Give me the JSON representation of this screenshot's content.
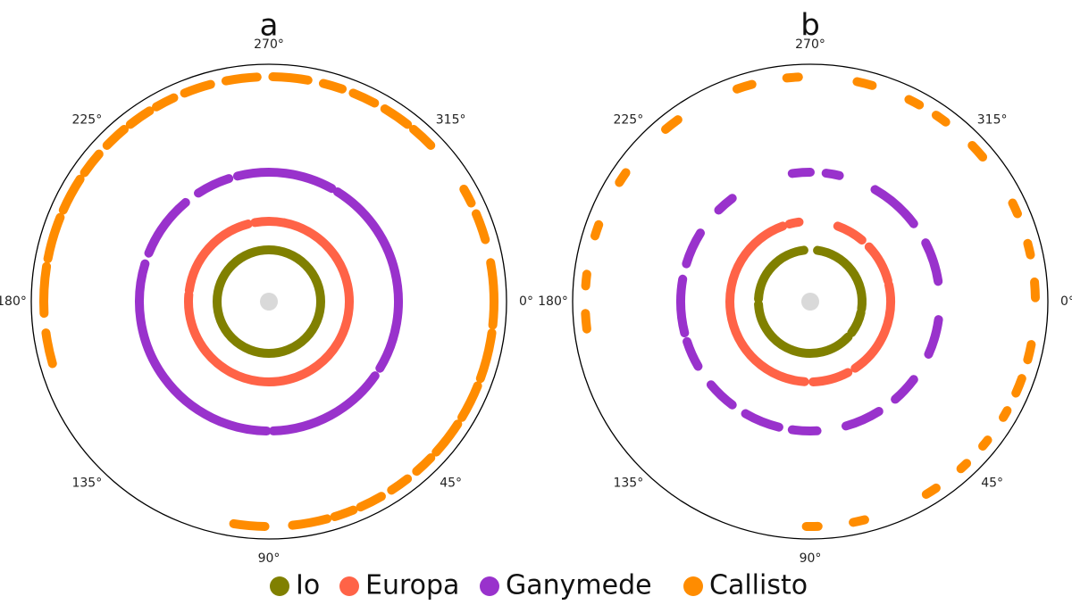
{
  "chart_data": [
    {
      "type": "polar",
      "title": "a",
      "angle_ticks": [
        "0°",
        "45°",
        "90°",
        "135°",
        "180°",
        "225°",
        "270°",
        "315°"
      ],
      "angle_tick_values": [
        0,
        45,
        90,
        135,
        180,
        225,
        270,
        315
      ],
      "series": [
        {
          "name": "Io",
          "color": "#808000",
          "radius": 1,
          "arcs": [
            [
              0,
              360
            ]
          ]
        },
        {
          "name": "Europa",
          "color": "#ff6347",
          "radius": 2,
          "arcs": [
            [
              -79,
              185
            ],
            [
              188,
              255
            ],
            [
              260,
              281
            ]
          ]
        },
        {
          "name": "Ganymede",
          "color": "#9932cc",
          "radius": 3,
          "arcs": [
            [
              -58,
              31
            ],
            [
              35,
              88
            ],
            [
              91,
              197
            ],
            [
              202,
              230
            ],
            [
              237,
              252
            ],
            [
              256,
              299
            ]
          ]
        },
        {
          "name": "Callisto",
          "color": "#ff8c00",
          "radius": 5,
          "arcs": [
            [
              -30,
              -26
            ],
            [
              -23,
              -16
            ],
            [
              -10,
              6
            ],
            [
              8,
              20
            ],
            [
              22,
              31
            ],
            [
              33,
              42
            ],
            [
              44,
              49
            ],
            [
              52,
              57
            ],
            [
              60,
              66
            ],
            [
              68,
              73
            ],
            [
              75,
              84
            ],
            [
              91,
              99
            ],
            [
              164,
              172
            ],
            [
              177,
              189
            ],
            [
              191,
              202
            ],
            [
              204,
              213
            ],
            [
              215,
              221
            ],
            [
              224,
              230
            ],
            [
              232,
              238
            ],
            [
              240,
              245
            ],
            [
              248,
              255
            ],
            [
              259,
              267
            ],
            [
              271,
              280
            ],
            [
              284,
              289
            ],
            [
              292,
              298
            ],
            [
              301,
              308
            ],
            [
              310,
              316
            ]
          ]
        }
      ]
    },
    {
      "type": "polar",
      "title": "b",
      "angle_ticks": [
        "0°",
        "45°",
        "90°",
        "135°",
        "180°",
        "225°",
        "270°",
        "315°"
      ],
      "angle_tick_values": [
        0,
        45,
        90,
        135,
        180,
        225,
        270,
        315
      ],
      "series": [
        {
          "name": "Io",
          "color": "#808000",
          "radius": 1,
          "arcs": [
            [
              -82,
              8
            ],
            [
              12,
              37
            ],
            [
              43,
              177
            ],
            [
              183,
              263
            ]
          ]
        },
        {
          "name": "Europa",
          "color": "#ff6347",
          "radius": 2,
          "arcs": [
            [
              -70,
              -50
            ],
            [
              -43,
              -15
            ],
            [
              -12,
              56
            ],
            [
              62,
              88
            ],
            [
              94,
              250
            ],
            [
              255,
              262
            ]
          ]
        },
        {
          "name": "Ganymede",
          "color": "#9932cc",
          "radius": 3,
          "arcs": [
            [
              -60,
              -37
            ],
            [
              -27,
              -9
            ],
            [
              8,
              24
            ],
            [
              37,
              49
            ],
            [
              58,
              74
            ],
            [
              87,
              98
            ],
            [
              104,
              120
            ],
            [
              127,
              140
            ],
            [
              150,
              162
            ],
            [
              166,
              190
            ],
            [
              197,
              212
            ],
            [
              225,
              233
            ],
            [
              262,
              270
            ],
            [
              277,
              283
            ]
          ]
        },
        {
          "name": "Callisto",
          "color": "#ff8c00",
          "radius": 5,
          "arcs": [
            [
              -26,
              -23
            ],
            [
              -15,
              -12
            ],
            [
              -5,
              -1
            ],
            [
              11,
              15
            ],
            [
              20,
              24
            ],
            [
              29,
              31
            ],
            [
              38,
              40
            ],
            [
              46,
              48
            ],
            [
              56,
              59
            ],
            [
              76,
              79
            ],
            [
              88,
              91
            ],
            [
              173,
              177
            ],
            [
              184,
              187
            ],
            [
              197,
              200
            ],
            [
              212,
              215
            ],
            [
              230,
              234
            ],
            [
              251,
              255
            ],
            [
              264,
              267
            ],
            [
              282,
              286
            ],
            [
              296,
              299
            ],
            [
              304,
              307
            ],
            [
              316,
              320
            ]
          ]
        }
      ]
    }
  ],
  "legend": {
    "items": [
      {
        "label": "Io",
        "color": "#808000"
      },
      {
        "label": "Europa",
        "color": "#ff6347"
      },
      {
        "label": "Ganymede",
        "color": "#9932cc"
      },
      {
        "label": "Callisto",
        "color": "#ff8c00"
      }
    ]
  },
  "center_marker_color": "#d9d9d9"
}
